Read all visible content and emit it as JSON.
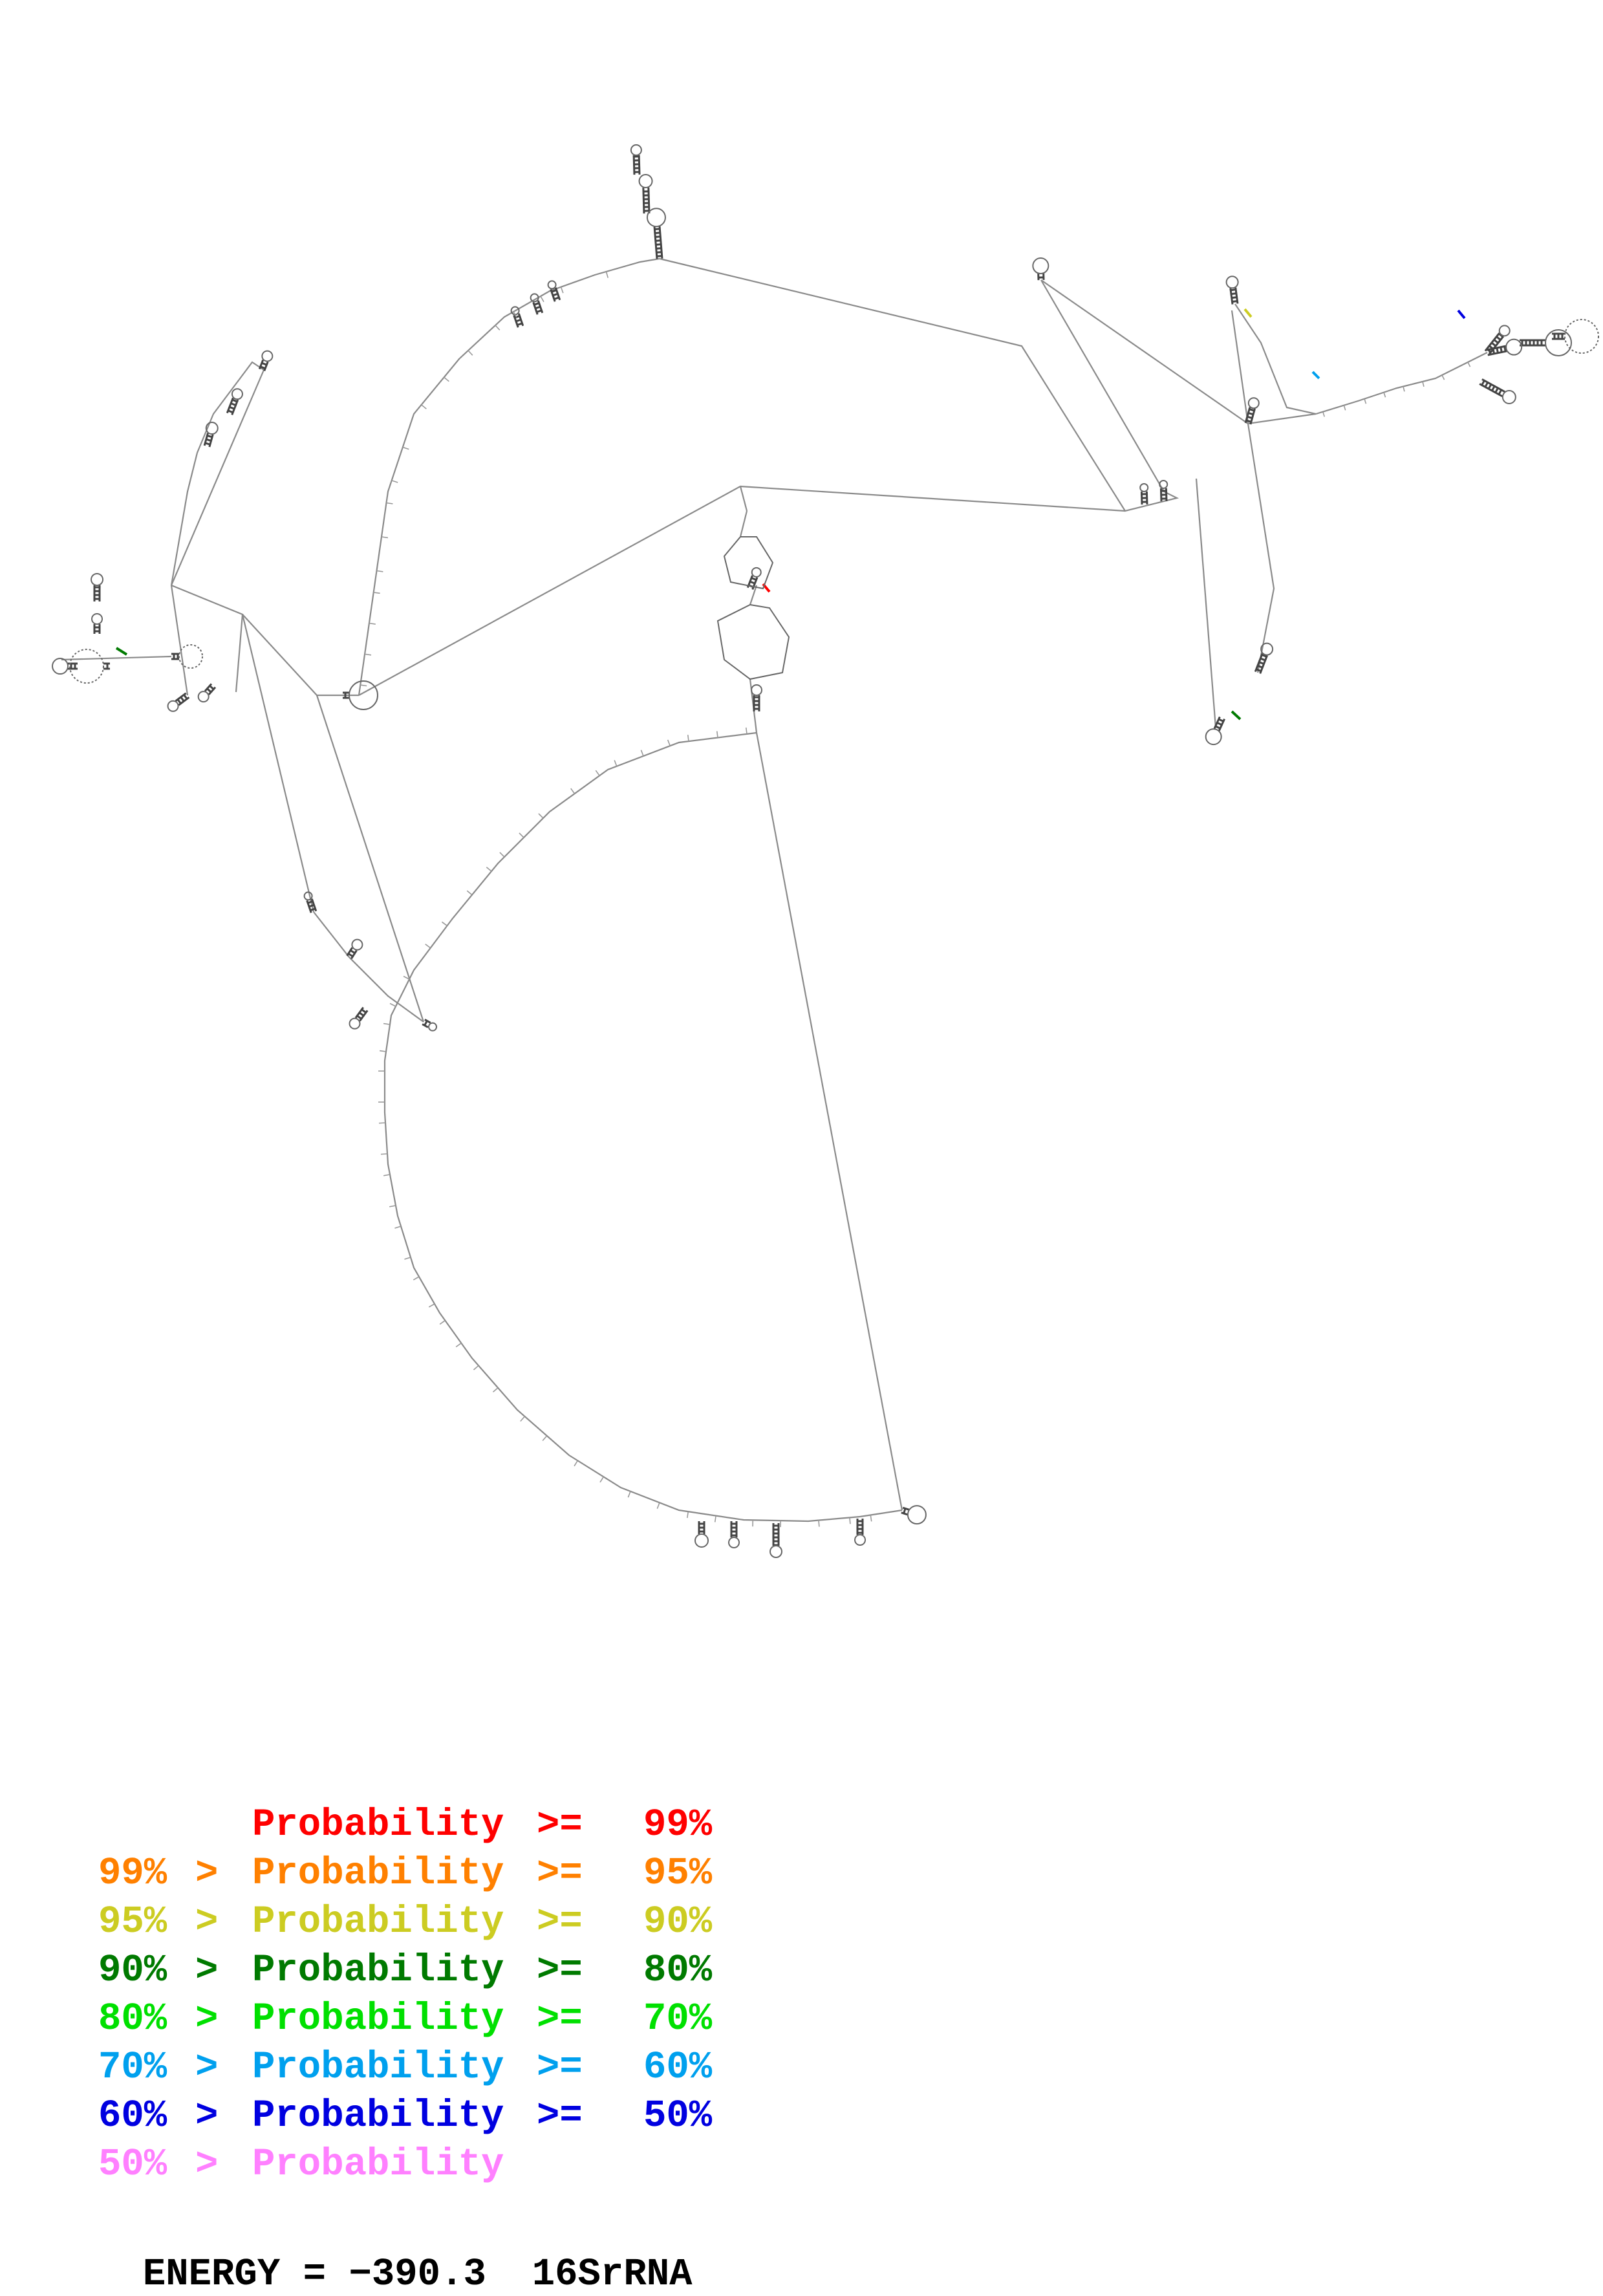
{
  "legend": [
    {
      "low": "",
      "op1": "",
      "word": "Probability",
      "op2": ">=",
      "high": "99%",
      "color": "#ff0000"
    },
    {
      "low": "99%",
      "op1": ">",
      "word": "Probability",
      "op2": ">=",
      "high": "95%",
      "color": "#ff8000"
    },
    {
      "low": "95%",
      "op1": ">",
      "word": "Probability",
      "op2": ">=",
      "high": "90%",
      "color": "#cccc22"
    },
    {
      "low": "90%",
      "op1": ">",
      "word": "Probability",
      "op2": ">=",
      "high": "80%",
      "color": "#007a00"
    },
    {
      "low": "80%",
      "op1": ">",
      "word": "Probability",
      "op2": ">=",
      "high": "70%",
      "color": "#00e000"
    },
    {
      "low": "70%",
      "op1": ">",
      "word": "Probability",
      "op2": ">=",
      "high": "60%",
      "color": "#00a0ee"
    },
    {
      "low": "60%",
      "op1": ">",
      "word": "Probability",
      "op2": ">=",
      "high": "50%",
      "color": "#0000e0"
    },
    {
      "low": "50%",
      "op1": ">",
      "word": "Probability",
      "op2": "",
      "high": "",
      "color": "#ff80ff"
    }
  ],
  "footer": {
    "energy_label": "ENERGY =",
    "energy_value": "−390.3",
    "molecule_name": "16SrRNA"
  },
  "colors": {
    "backbone": "#8a8a8a",
    "base": "#555555",
    "background": "#ffffff"
  }
}
